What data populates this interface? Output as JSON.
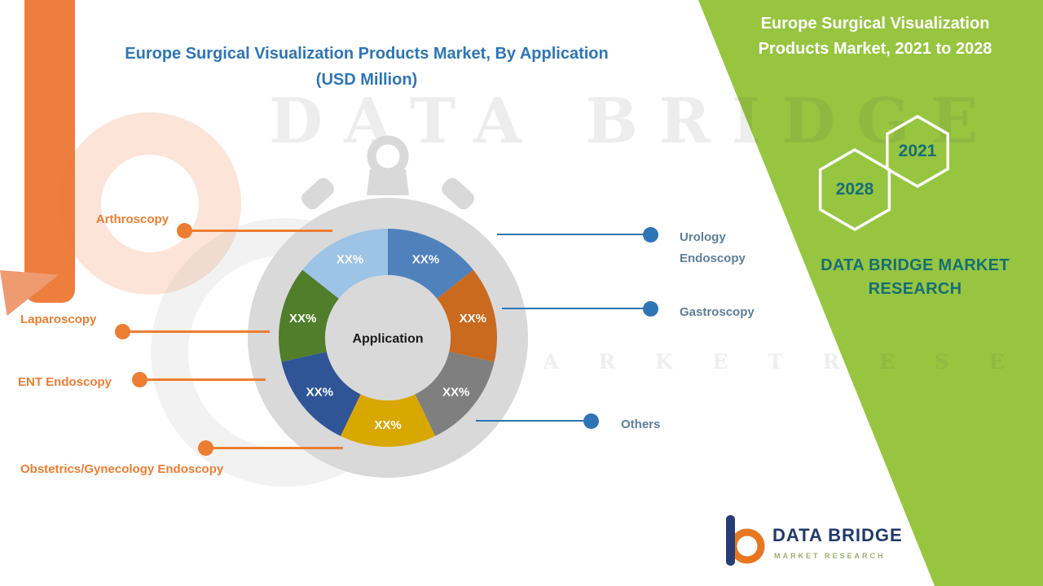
{
  "header": {
    "chart_title_line1": "Europe Surgical Visualization Products Market, By Application",
    "chart_title_line2": "(USD Million)",
    "title_color": "#2e75b6"
  },
  "chart_data": {
    "type": "pie",
    "variant": "donut-stopwatch",
    "title": "Europe Surgical Visualization Products Market, By Application (USD Million)",
    "center_label": "Application",
    "note": "All segment values are masked as XX% in the source image; segments drawn equal",
    "segments": [
      {
        "label": "Urology Endoscopy",
        "value": "XX%",
        "color": "#4f81bd",
        "callout_side": "right"
      },
      {
        "label": "Gastroscopy",
        "value": "XX%",
        "color": "#c96a1f",
        "callout_side": "right"
      },
      {
        "label": "Others",
        "value": "XX%",
        "color": "#7f7f7f",
        "callout_side": "right"
      },
      {
        "label": "Obstetrics/Gynecology Endoscopy",
        "value": "XX%",
        "color": "#d9a800",
        "callout_side": "left"
      },
      {
        "label": "ENT Endoscopy",
        "value": "XX%",
        "color": "#2f5597",
        "callout_side": "left"
      },
      {
        "label": "Laparoscopy",
        "value": "XX%",
        "color": "#507e2a",
        "callout_side": "left"
      },
      {
        "label": "Arthroscopy",
        "value": "XX%",
        "color": "#9dc3e6",
        "callout_side": "left"
      }
    ],
    "callout_colors": {
      "left_label": "#ed7d31",
      "right_label_text": "#5e7e9b",
      "right_dot": "#2e75b6"
    },
    "legend_position": "callouts-both-sides"
  },
  "green_panel": {
    "bg_color": "#97c540",
    "title_line1": "Europe Surgical Visualization",
    "title_line2": "Products Market, 2021 to 2028",
    "year_left_hexagon": "2028",
    "year_right_hexagon": "2021",
    "brand_line1": "DATA BRIDGE MARKET",
    "brand_line2": "RESEARCH",
    "brand_color": "#156e78"
  },
  "watermark": {
    "line1": "DATA BRIDGE",
    "line2": "M A R K E T    R E S E A R C H"
  },
  "logo": {
    "name": "DATA BRIDGE",
    "subtitle": "MARKET RESEARCH"
  }
}
